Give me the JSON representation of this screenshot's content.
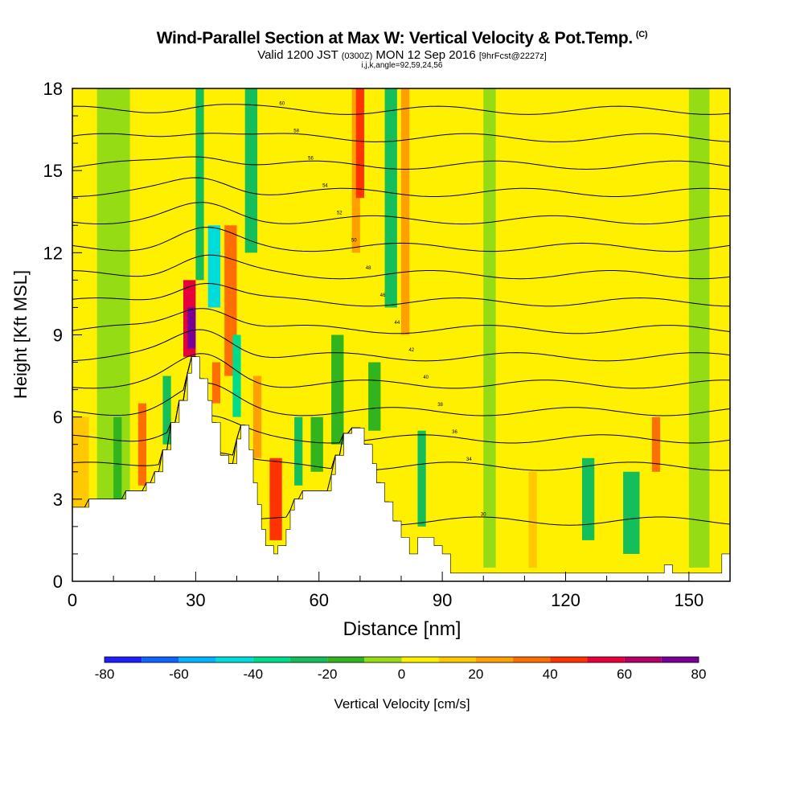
{
  "chart_data": {
    "type": "heatmap",
    "title": {
      "main": "Wind-Parallel Section at Max W: Vertical Velocity & Pot.Temp.",
      "main_suffix": "(C)",
      "line2_a": "Valid 1200 JST",
      "line2_b": "(0300Z)",
      "line2_c": "MON 12 Sep 2016",
      "line2_d": "[9hrFcst@2227z]",
      "line3": "i,j,k,angle=92,59,24,56"
    },
    "xlabel": "Distance [nm]",
    "ylabel": "Height [Kft MSL]",
    "xlim": [
      0,
      160
    ],
    "ylim": [
      0,
      18
    ],
    "xticks": [
      "0",
      "30",
      "60",
      "90",
      "120",
      "150"
    ],
    "yticks": [
      "0",
      "3",
      "6",
      "9",
      "12",
      "15",
      "18"
    ],
    "colorbar": {
      "label": "Vertical Velocity [cm/s]",
      "tick_labels": [
        "-80",
        "-60",
        "-40",
        "-20",
        "0",
        "20",
        "40",
        "60",
        "80"
      ],
      "levels": [
        -80,
        -70,
        -60,
        -50,
        -40,
        -30,
        -20,
        -10,
        0,
        10,
        20,
        30,
        40,
        50,
        60,
        70,
        80
      ],
      "colors": [
        "#1e1efa",
        "#0f64ff",
        "#00b4ff",
        "#00dcdc",
        "#00dc8c",
        "#14be5a",
        "#32b41e",
        "#96dc14",
        "#fff000",
        "#ffc800",
        "#ffa000",
        "#ff6e00",
        "#ff3200",
        "#e6003c",
        "#b40064",
        "#780096"
      ]
    },
    "terrain": [
      [
        0,
        2.7
      ],
      [
        4,
        2.7
      ],
      [
        4,
        3.0
      ],
      [
        13,
        3.0
      ],
      [
        13,
        3.3
      ],
      [
        18,
        3.3
      ],
      [
        18,
        3.6
      ],
      [
        20,
        3.6
      ],
      [
        20,
        4.0
      ],
      [
        22,
        4.0
      ],
      [
        22,
        4.8
      ],
      [
        24,
        4.8
      ],
      [
        24,
        5.8
      ],
      [
        26,
        5.8
      ],
      [
        26,
        6.6
      ],
      [
        28,
        6.6
      ],
      [
        28,
        7.6
      ],
      [
        29,
        7.6
      ],
      [
        29,
        8.2
      ],
      [
        31,
        8.2
      ],
      [
        31,
        7.4
      ],
      [
        33,
        7.4
      ],
      [
        33,
        6.6
      ],
      [
        34,
        6.6
      ],
      [
        34,
        5.8
      ],
      [
        36,
        5.8
      ],
      [
        36,
        4.6
      ],
      [
        38,
        4.6
      ],
      [
        38,
        4.3
      ],
      [
        40,
        4.3
      ],
      [
        40,
        5.2
      ],
      [
        41,
        5.2
      ],
      [
        41,
        5.7
      ],
      [
        43,
        5.7
      ],
      [
        43,
        4.8
      ],
      [
        44,
        4.8
      ],
      [
        44,
        3.6
      ],
      [
        45,
        3.6
      ],
      [
        45,
        2.8
      ],
      [
        46,
        2.8
      ],
      [
        46,
        1.9
      ],
      [
        47,
        1.9
      ],
      [
        47,
        1.3
      ],
      [
        49,
        1.3
      ],
      [
        49,
        1.0
      ],
      [
        50,
        1.0
      ],
      [
        50,
        1.3
      ],
      [
        52,
        1.3
      ],
      [
        52,
        1.9
      ],
      [
        53,
        1.9
      ],
      [
        53,
        2.6
      ],
      [
        54,
        2.6
      ],
      [
        54,
        3.0
      ],
      [
        56,
        3.0
      ],
      [
        56,
        3.3
      ],
      [
        63,
        3.3
      ],
      [
        63,
        3.9
      ],
      [
        64,
        3.9
      ],
      [
        64,
        4.6
      ],
      [
        66,
        4.6
      ],
      [
        66,
        5.4
      ],
      [
        68,
        5.4
      ],
      [
        68,
        5.6
      ],
      [
        71,
        5.6
      ],
      [
        71,
        5.0
      ],
      [
        73,
        5.0
      ],
      [
        73,
        4.3
      ],
      [
        74,
        4.3
      ],
      [
        74,
        3.6
      ],
      [
        76,
        3.6
      ],
      [
        76,
        2.9
      ],
      [
        78,
        2.9
      ],
      [
        78,
        2.2
      ],
      [
        80,
        2.2
      ],
      [
        80,
        1.6
      ],
      [
        82,
        1.6
      ],
      [
        82,
        1.0
      ],
      [
        84,
        1.0
      ],
      [
        84,
        1.6
      ],
      [
        88,
        1.6
      ],
      [
        88,
        1.3
      ],
      [
        90,
        1.3
      ],
      [
        90,
        1.0
      ],
      [
        92,
        1.0
      ],
      [
        92,
        0.3
      ],
      [
        144,
        0.3
      ],
      [
        144,
        0.6
      ],
      [
        146,
        0.6
      ],
      [
        146,
        0.3
      ],
      [
        158,
        0.3
      ],
      [
        158,
        1.0
      ],
      [
        160,
        1.0
      ]
    ],
    "w_cells": [
      {
        "x": [
          0,
          4
        ],
        "z": [
          0,
          6
        ],
        "w": 10
      },
      {
        "x": [
          6,
          14
        ],
        "z": [
          0,
          18
        ],
        "w": -5
      },
      {
        "x": [
          10,
          12
        ],
        "z": [
          3,
          6
        ],
        "w": -20
      },
      {
        "x": [
          16,
          18
        ],
        "z": [
          3.5,
          6.5
        ],
        "w": 35
      },
      {
        "x": [
          22,
          24
        ],
        "z": [
          5,
          7.5
        ],
        "w": -25
      },
      {
        "x": [
          27,
          30
        ],
        "z": [
          8.2,
          11
        ],
        "w": 50
      },
      {
        "x": [
          28,
          30
        ],
        "z": [
          8.5,
          10
        ],
        "w": 70
      },
      {
        "x": [
          30,
          32
        ],
        "z": [
          11,
          18
        ],
        "w": -25
      },
      {
        "x": [
          33,
          36
        ],
        "z": [
          10,
          13
        ],
        "w": -45
      },
      {
        "x": [
          34,
          36
        ],
        "z": [
          6.5,
          8
        ],
        "w": 30
      },
      {
        "x": [
          37,
          40
        ],
        "z": [
          7.5,
          13
        ],
        "w": 30
      },
      {
        "x": [
          39,
          41
        ],
        "z": [
          6,
          9
        ],
        "w": -35
      },
      {
        "x": [
          42,
          45
        ],
        "z": [
          12,
          18
        ],
        "w": -25
      },
      {
        "x": [
          44,
          46
        ],
        "z": [
          4.5,
          7.5
        ],
        "w": 25
      },
      {
        "x": [
          48,
          51
        ],
        "z": [
          1.5,
          4.5
        ],
        "w": 45
      },
      {
        "x": [
          54,
          56
        ],
        "z": [
          3.5,
          6
        ],
        "w": -25
      },
      {
        "x": [
          58,
          61
        ],
        "z": [
          4,
          6
        ],
        "w": -20
      },
      {
        "x": [
          63,
          66
        ],
        "z": [
          5,
          9
        ],
        "w": -15
      },
      {
        "x": [
          68,
          70
        ],
        "z": [
          12,
          18
        ],
        "w": 20
      },
      {
        "x": [
          69,
          71
        ],
        "z": [
          14,
          18
        ],
        "w": 40
      },
      {
        "x": [
          72,
          75
        ],
        "z": [
          5.5,
          8
        ],
        "w": -20
      },
      {
        "x": [
          76,
          79
        ],
        "z": [
          10,
          18
        ],
        "w": -25
      },
      {
        "x": [
          80,
          82
        ],
        "z": [
          9,
          18
        ],
        "w": 25
      },
      {
        "x": [
          84,
          86
        ],
        "z": [
          2,
          5.5
        ],
        "w": -25
      },
      {
        "x": [
          100,
          103
        ],
        "z": [
          0.5,
          18
        ],
        "w": -5
      },
      {
        "x": [
          111,
          113
        ],
        "z": [
          0.5,
          4
        ],
        "w": 15
      },
      {
        "x": [
          124,
          127
        ],
        "z": [
          1.5,
          4.5
        ],
        "w": -25
      },
      {
        "x": [
          134,
          138
        ],
        "z": [
          1,
          4
        ],
        "w": -25
      },
      {
        "x": [
          141,
          143
        ],
        "z": [
          4,
          6
        ],
        "w": 35
      },
      {
        "x": [
          150,
          155
        ],
        "z": [
          0.5,
          18
        ],
        "w": -5
      }
    ],
    "theta_levels": [
      {
        "label": "30",
        "z": 2.2,
        "wave": 0.3
      },
      {
        "label": "34",
        "z": 4.2,
        "wave": 0.6
      },
      {
        "label": "36",
        "z": 5.2,
        "wave": 0.8
      },
      {
        "label": "38",
        "z": 6.2,
        "wave": 0.9
      },
      {
        "label": "40",
        "z": 7.2,
        "wave": 1.0
      },
      {
        "label": "42",
        "z": 8.2,
        "wave": 1.0
      },
      {
        "label": "44",
        "z": 9.2,
        "wave": 0.9
      },
      {
        "label": "46",
        "z": 10.2,
        "wave": 0.8
      },
      {
        "label": "48",
        "z": 11.2,
        "wave": 0.7
      },
      {
        "label": "50",
        "z": 12.2,
        "wave": 0.6
      },
      {
        "label": "52",
        "z": 13.2,
        "wave": 0.5
      },
      {
        "label": "54",
        "z": 14.2,
        "wave": 0.5
      },
      {
        "label": "56",
        "z": 15.2,
        "wave": 0.4
      },
      {
        "label": "58",
        "z": 16.2,
        "wave": 0.3
      },
      {
        "label": "60",
        "z": 17.2,
        "wave": 0.2
      }
    ]
  }
}
